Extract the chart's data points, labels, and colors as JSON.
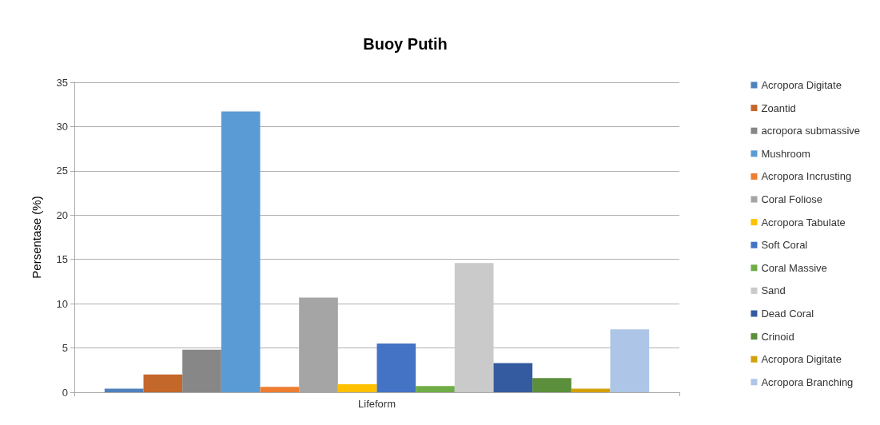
{
  "chart_data": {
    "type": "bar",
    "title": "Buoy Putih",
    "ylabel": "Persentase (%)",
    "categories": [
      "Lifeform"
    ],
    "series": [
      {
        "name": "Acropora Digitate",
        "color": "#4f81bd",
        "values": [
          0.4
        ]
      },
      {
        "name": "Zoantid",
        "color": "#c4672a",
        "values": [
          2.0
        ]
      },
      {
        "name": "acropora submassive",
        "color": "#878787",
        "values": [
          4.8
        ]
      },
      {
        "name": "Mushroom",
        "color": "#5b9bd5",
        "values": [
          31.7
        ]
      },
      {
        "name": "Acropora Incrusting",
        "color": "#ed7d31",
        "values": [
          0.6
        ]
      },
      {
        "name": "Coral Foliose",
        "color": "#a5a5a5",
        "values": [
          10.7
        ]
      },
      {
        "name": "Acropora Tabulate",
        "color": "#ffc000",
        "values": [
          0.9
        ]
      },
      {
        "name": "Soft Coral",
        "color": "#4472c4",
        "values": [
          5.5
        ]
      },
      {
        "name": "Coral Massive",
        "color": "#70ad47",
        "values": [
          0.7
        ]
      },
      {
        "name": "Sand",
        "color": "#cacaca",
        "values": [
          14.6
        ]
      },
      {
        "name": "Dead Coral",
        "color": "#345b9f",
        "values": [
          3.3
        ]
      },
      {
        "name": "Crinoid",
        "color": "#5b8f3b",
        "values": [
          1.6
        ]
      },
      {
        "name": "Acropora Digitate",
        "color": "#d4a00a",
        "values": [
          0.4
        ]
      },
      {
        "name": "Acropora Branching",
        "color": "#adc5e6",
        "values": [
          7.1
        ]
      }
    ],
    "ylim": [
      0,
      35
    ],
    "yticks": [
      0,
      5,
      10,
      15,
      20,
      25,
      30,
      35
    ],
    "grid": "y",
    "legend": "right"
  }
}
